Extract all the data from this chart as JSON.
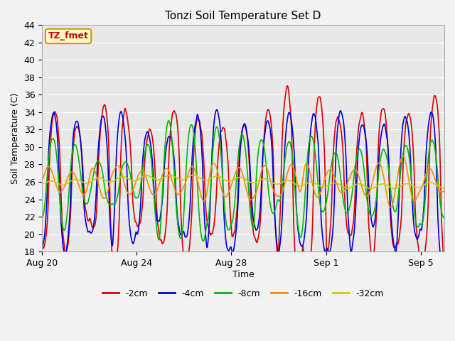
{
  "title": "Tonzi Soil Temperature Set D",
  "xlabel": "Time",
  "ylabel": "Soil Temperature (C)",
  "ylim": [
    18,
    44
  ],
  "yticks": [
    18,
    20,
    22,
    24,
    26,
    28,
    30,
    32,
    34,
    36,
    38,
    40,
    42,
    44
  ],
  "xtick_labels": [
    "Aug 20",
    "Aug 24",
    "Aug 28",
    "Sep 1",
    "Sep 5"
  ],
  "xtick_positions": [
    0,
    4,
    8,
    12,
    16
  ],
  "annotation_text": "TZ_fmet",
  "annotation_color": "#cc0000",
  "annotation_bg": "#ffffcc",
  "annotation_border": "#cc9900",
  "fig_bg": "#f2f2f2",
  "plot_bg": "#e8e8e8",
  "series": [
    {
      "label": "-2cm",
      "color": "#dd0000",
      "lw": 1.2
    },
    {
      "label": "-4cm",
      "color": "#0000dd",
      "lw": 1.2
    },
    {
      "label": "-8cm",
      "color": "#00bb00",
      "lw": 1.2
    },
    {
      "label": "-16cm",
      "color": "#ff8800",
      "lw": 1.2
    },
    {
      "label": "-32cm",
      "color": "#cccc00",
      "lw": 1.2
    }
  ],
  "n_points": 1700,
  "time_days": 17.0
}
